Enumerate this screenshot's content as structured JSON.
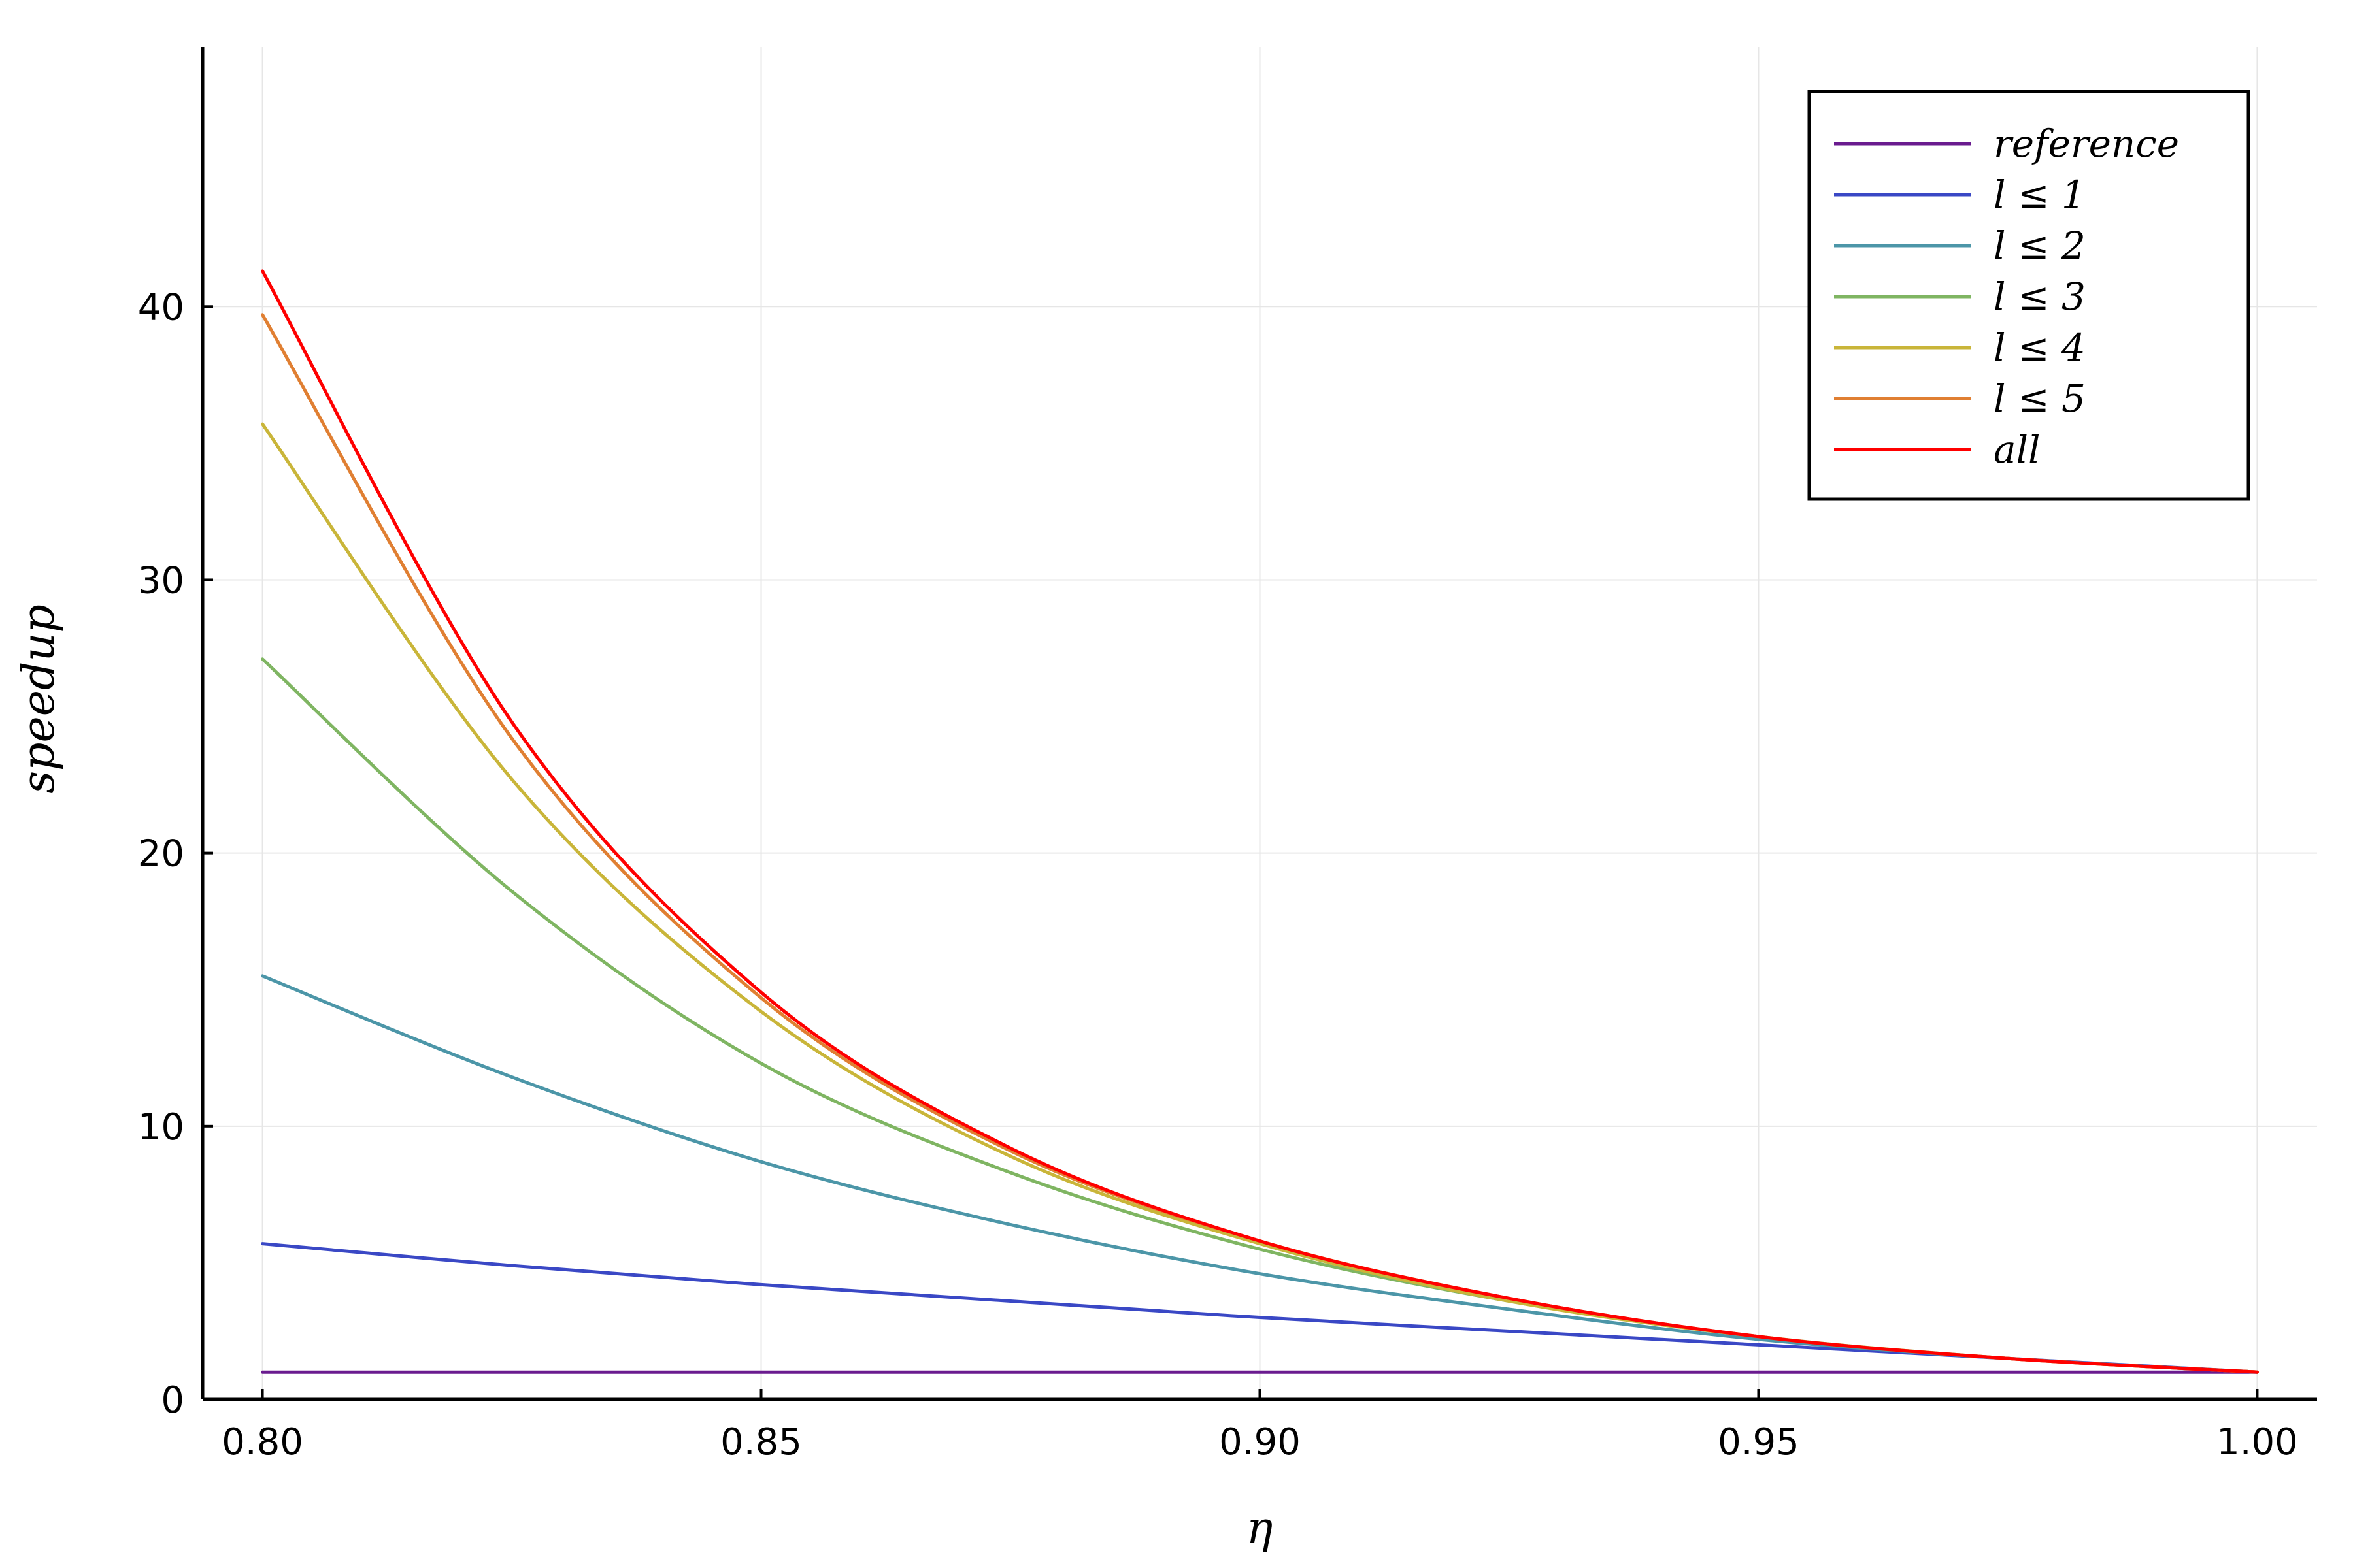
{
  "chart_data": {
    "type": "line",
    "title": "",
    "xlabel": "η",
    "ylabel": "speedup",
    "xlim": [
      0.794,
      1.006
    ],
    "ylim": [
      0,
      49.5
    ],
    "grid": true,
    "legend_position": "top-right",
    "x_ticks": [
      {
        "value": 0.8,
        "label": "0.80"
      },
      {
        "value": 0.85,
        "label": "0.85"
      },
      {
        "value": 0.9,
        "label": "0.90"
      },
      {
        "value": 0.95,
        "label": "0.95"
      },
      {
        "value": 1.0,
        "label": "1.00"
      }
    ],
    "y_ticks": [
      {
        "value": 0,
        "label": "0"
      },
      {
        "value": 10,
        "label": "10"
      },
      {
        "value": 20,
        "label": "20"
      },
      {
        "value": 30,
        "label": "30"
      },
      {
        "value": 40,
        "label": "40"
      }
    ],
    "x": [
      0.8,
      0.825,
      0.85,
      0.875,
      0.9,
      0.925,
      0.95,
      0.975,
      1.0
    ],
    "series": [
      {
        "name": "reference",
        "color": "#6a1b8f",
        "values": [
          1.0,
          1.0,
          1.0,
          1.0,
          1.0,
          1.0,
          1.0,
          1.0,
          1.0
        ]
      },
      {
        "name": "l ≤ 1",
        "color": "#3a48c5",
        "values": [
          5.7,
          4.9,
          4.2,
          3.6,
          3.0,
          2.5,
          2.0,
          1.5,
          1.0
        ]
      },
      {
        "name": "l ≤ 2",
        "color": "#4c96a8",
        "values": [
          15.5,
          11.8,
          8.7,
          6.4,
          4.6,
          3.3,
          2.2,
          1.5,
          1.0
        ]
      },
      {
        "name": "l ≤ 3",
        "color": "#7fb562",
        "values": [
          27.1,
          18.6,
          12.3,
          8.3,
          5.5,
          3.6,
          2.3,
          1.5,
          1.0
        ]
      },
      {
        "name": "l ≤ 4",
        "color": "#c9b539",
        "values": [
          35.7,
          22.7,
          14.2,
          8.9,
          5.7,
          3.6,
          2.3,
          1.5,
          1.0
        ]
      },
      {
        "name": "l ≤ 5",
        "color": "#e07f32",
        "values": [
          39.7,
          24.2,
          14.7,
          9.1,
          5.8,
          3.7,
          2.3,
          1.5,
          1.0
        ]
      },
      {
        "name": "all",
        "color": "#ff0000",
        "values": [
          41.3,
          24.8,
          14.9,
          9.2,
          5.8,
          3.7,
          2.3,
          1.5,
          1.0
        ]
      }
    ]
  }
}
